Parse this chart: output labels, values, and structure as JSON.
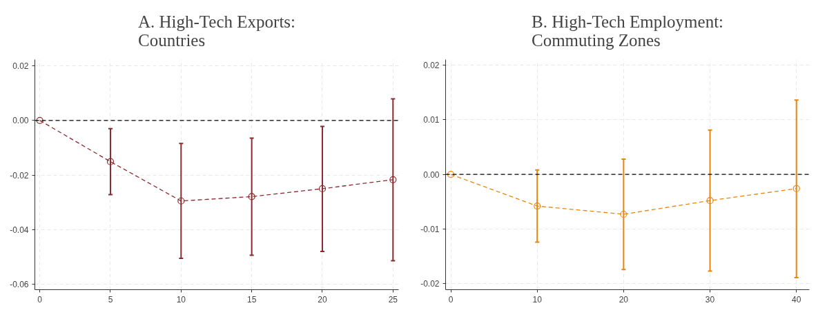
{
  "chart_data": [
    {
      "type": "line",
      "title": "A. High-Tech Exports:\nCountries",
      "x": [
        0,
        5,
        10,
        15,
        20,
        25
      ],
      "series": [
        {
          "color": "#8b2a2e",
          "values": [
            0,
            -0.0151,
            -0.0295,
            -0.0279,
            -0.025,
            -0.0217
          ],
          "errors": [
            null,
            [
              -0.0272,
              -0.003
            ],
            [
              -0.0505,
              -0.0084
            ],
            [
              -0.0494,
              -0.0065
            ],
            [
              -0.048,
              -0.0022
            ],
            [
              -0.0514,
              0.0079
            ]
          ]
        }
      ],
      "xlim": [
        -0.35,
        25.4
      ],
      "xticks": [
        0,
        5,
        10,
        15,
        20,
        25
      ],
      "ylim": [
        -0.062,
        0.0223
      ],
      "yticks": [
        {
          "value": 0.02,
          "label": "0.02"
        },
        {
          "value": 0,
          "label": "0.00"
        },
        {
          "value": -0.02,
          "label": "-0.02"
        },
        {
          "value": -0.04,
          "label": "-0.04"
        },
        {
          "value": -0.06,
          "label": "-0.06"
        }
      ],
      "ref_lines": [
        {
          "axis": "y",
          "value": 0,
          "color": "#000000",
          "line_style": "dashed"
        }
      ],
      "grid": true,
      "marker": "circle",
      "line_style": "dashed"
    },
    {
      "type": "line",
      "title": "B. High-Tech Employment:\nCommuting Zones",
      "x": [
        0,
        10,
        20,
        30,
        40
      ],
      "series": [
        {
          "color": "#e8850c",
          "values": [
            0,
            -0.0058,
            -0.0073,
            -0.0048,
            -0.0026
          ],
          "errors": [
            null,
            [
              -0.0124,
              0.0008
            ],
            [
              -0.0174,
              0.0028
            ],
            [
              -0.0177,
              0.0081
            ],
            [
              -0.0189,
              0.0136
            ]
          ]
        }
      ],
      "xlim": [
        -0.6,
        41.5
      ],
      "xticks": [
        0,
        10,
        20,
        30,
        40
      ],
      "ylim": [
        -0.0211,
        0.021
      ],
      "yticks": [
        {
          "value": 0.02,
          "label": "0.02"
        },
        {
          "value": 0.01,
          "label": "0.01"
        },
        {
          "value": 0,
          "label": "0.00"
        },
        {
          "value": -0.01,
          "label": "-0.01"
        },
        {
          "value": -0.02,
          "label": "-0.02"
        }
      ],
      "ref_lines": [
        {
          "axis": "y",
          "value": 0,
          "color": "#000000",
          "line_style": "dashed"
        }
      ],
      "grid": true,
      "marker": "circle",
      "line_style": "dashed"
    }
  ]
}
